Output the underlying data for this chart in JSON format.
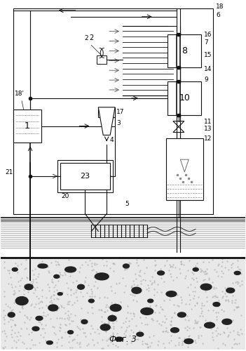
{
  "title": "Фиг. 3",
  "bg": "#ffffff",
  "figsize": [
    3.51,
    5.0
  ],
  "dpi": 100
}
